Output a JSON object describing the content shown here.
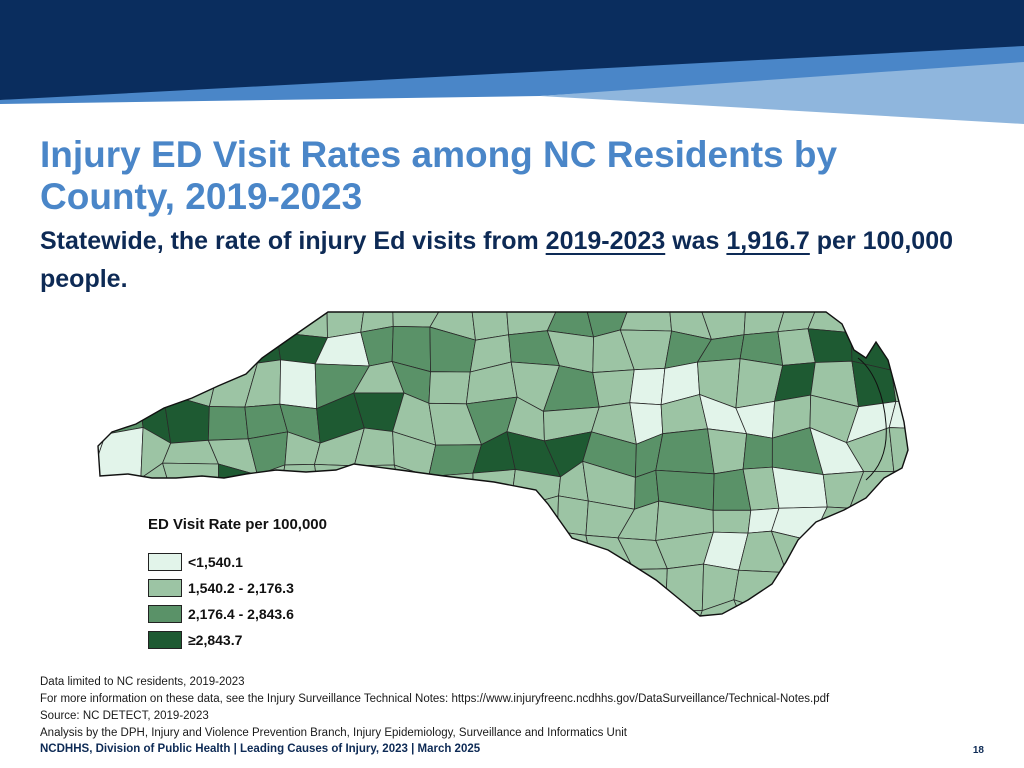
{
  "slide": {
    "title": "Injury ED Visit Rates among NC Residents by County, 2019-2023",
    "subtitle_prefix": "Statewide, the rate of injury Ed visits from",
    "subtitle_years": "2019-2023",
    "subtitle_mid": "was",
    "subtitle_rate": "1,916.7",
    "subtitle_suffix": "per 100,000 people."
  },
  "legend": {
    "title": "ED Visit Rate per 100,000",
    "items": [
      {
        "label": "<1,540.1",
        "color": "#e2f4ea"
      },
      {
        "label": "1,540.2 - 2,176.3",
        "color": "#9cc4a4"
      },
      {
        "label": "2,176.4 - 2,843.6",
        "color": "#5a9268"
      },
      {
        "label": "≥2,843.7",
        "color": "#1e5a32"
      }
    ]
  },
  "notes": [
    "Data limited to NC residents, 2019-2023",
    "For more information on these data, see the Injury Surveillance Technical Notes: https://www.injuryfreenc.ncdhhs.gov/DataSurveillance/Technical-Notes.pdf",
    "Source: NC DETECT, 2019-2023",
    "Analysis by the DPH, Injury and Violence Prevention Branch, Injury Epidemiology, Surveillance and Informatics Unit"
  ],
  "footer": {
    "text": "NCDHHS, Division of Public Health | Leading Causes of Injury, 2023 | March 2025",
    "page": "18"
  },
  "colors": {
    "navy": "#0a2d5e",
    "mid_blue": "#4a86c8",
    "light_blue": "#8fb6dd"
  }
}
